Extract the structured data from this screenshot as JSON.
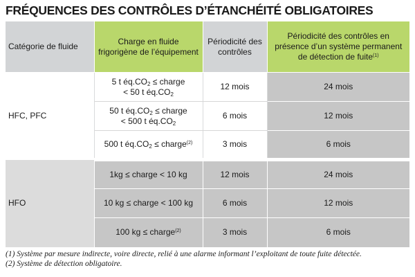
{
  "title": "FRÉQUENCES DES CONTRÔLES D’ÉTANCHÉITÉ OBLIGATOIRES",
  "headers": {
    "category": "Catégorie de fluide",
    "charge": "Charge en fluide frigorigène de l’équipement",
    "period": "Périodicité des contrôles",
    "perm_text": "Périodicité des contrôles en présence d’un système permanent de détection de fuite",
    "perm_note": "(1)"
  },
  "groups": [
    {
      "category": "HFC, PFC",
      "rows": [
        {
          "charge": [
            "5 t éq.CO",
            "2",
            " ≤ charge",
            "< 50 t éq.CO",
            "2"
          ],
          "period": "12 mois",
          "perm": "24 mois"
        },
        {
          "charge": [
            "50 t éq.CO",
            "2",
            " ≤ charge",
            "< 500 t éq.CO",
            "2"
          ],
          "period": "6 mois",
          "perm": "12 mois"
        },
        {
          "charge": [
            "500 t éq.CO",
            "2",
            " ≤ charge",
            "(2)"
          ],
          "period": "3 mois",
          "perm": "6 mois"
        }
      ]
    },
    {
      "category": "HFO",
      "rows": [
        {
          "charge": "1kg ≤ charge < 10 kg",
          "period": "12 mois",
          "perm": "24 mois"
        },
        {
          "charge": "10 kg ≤ charge < 100 kg",
          "period": "6 mois",
          "perm": "12 mois"
        },
        {
          "charge": "100 kg ≤ charge",
          "charge_note": "(2)",
          "period": "3 mois",
          "perm": "6 mois"
        }
      ]
    }
  ],
  "notes": [
    "(1) Système par mesure indirecte, voire directe, relié à une alarme informant l’exploitant de toute fuite détectée.",
    "(2) Système de détection obligatoire."
  ]
}
